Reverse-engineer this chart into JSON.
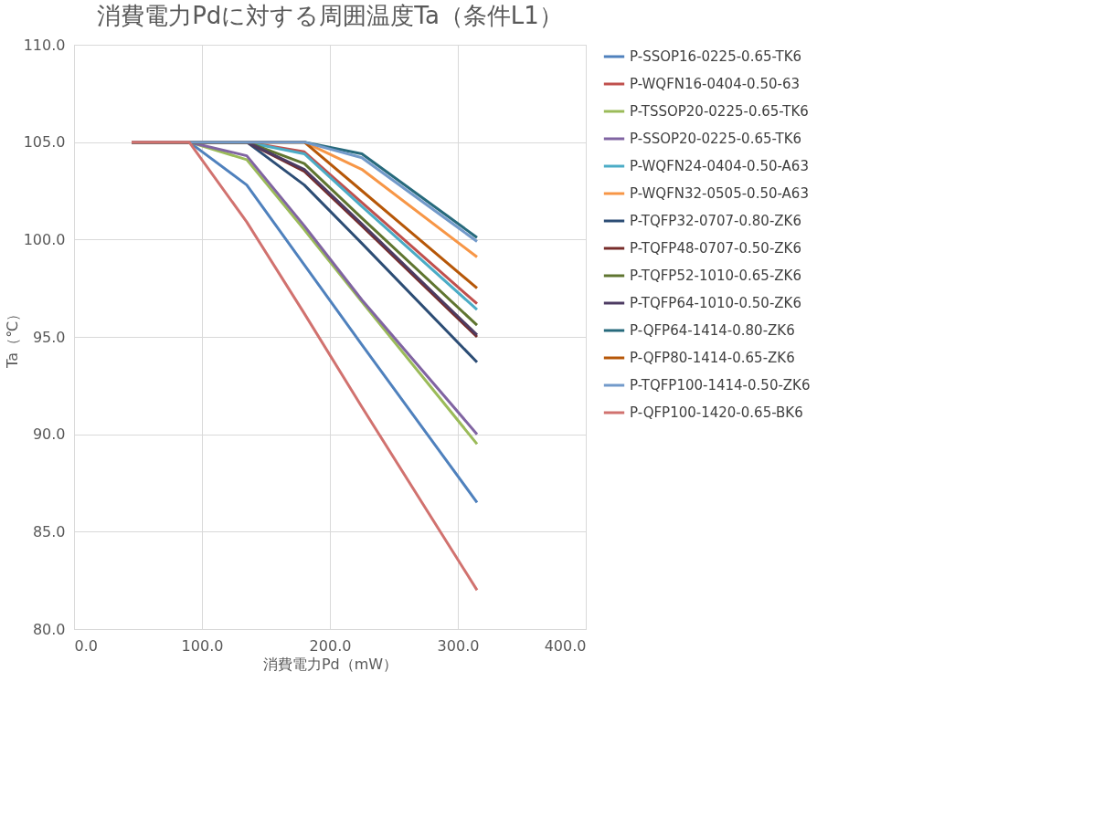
{
  "chart_data": {
    "type": "line",
    "title": "消費電力Pdに対する周囲温度Ta（条件L1）",
    "xlabel": "消費電力Pd（mW）",
    "ylabel": "Ta（℃）",
    "x": [
      45,
      90,
      135,
      180,
      225,
      315
    ],
    "series": [
      {
        "name": "P-SSOP16-0225-0.65-TK6",
        "color": "#4f81bd",
        "values": [
          105,
          105,
          102.8,
          98.7,
          94.6,
          86.5
        ]
      },
      {
        "name": "P-WQFN16-0404-0.50-63",
        "color": "#c0504d",
        "values": [
          105,
          105,
          105,
          104.5,
          101.9,
          96.7
        ]
      },
      {
        "name": "P-TSSOP20-0225-0.65-TK6",
        "color": "#9bbb59",
        "values": [
          105,
          105,
          104.1,
          100.5,
          96.8,
          89.5
        ]
      },
      {
        "name": "P-SSOP20-0225-0.65-TK6",
        "color": "#8064a2",
        "values": [
          105,
          105,
          104.3,
          100.7,
          96.9,
          90.0
        ]
      },
      {
        "name": "P-WQFN24-0404-0.50-A63",
        "color": "#4bacc6",
        "values": [
          105,
          105,
          105,
          104.4,
          101.7,
          96.4
        ]
      },
      {
        "name": "P-WQFN32-0505-0.50-A63",
        "color": "#f79646",
        "values": [
          105,
          105,
          105,
          105,
          103.6,
          99.1
        ]
      },
      {
        "name": "P-TQFP32-0707-0.80-ZK6",
        "color": "#2c4d75",
        "values": [
          105,
          105,
          105,
          102.8,
          99.8,
          93.7
        ]
      },
      {
        "name": "P-TQFP48-0707-0.50-ZK6",
        "color": "#772c2a",
        "values": [
          105,
          105,
          105,
          103.5,
          100.7,
          95.0
        ]
      },
      {
        "name": "P-TQFP52-1010-0.65-ZK6",
        "color": "#5f7530",
        "values": [
          105,
          105,
          105,
          103.9,
          101.1,
          95.6
        ]
      },
      {
        "name": "P-TQFP64-1010-0.50-ZK6",
        "color": "#4d3b62",
        "values": [
          105,
          105,
          105,
          103.6,
          100.8,
          95.1
        ]
      },
      {
        "name": "P-QFP64-1414-0.80-ZK6",
        "color": "#276a7c",
        "values": [
          105,
          105,
          105,
          105,
          104.4,
          100.1
        ]
      },
      {
        "name": "P-QFP80-1414-0.65-ZK6",
        "color": "#b65708",
        "values": [
          105,
          105,
          105,
          105,
          102.5,
          97.5
        ]
      },
      {
        "name": "P-TQFP100-1414-0.50-ZK6",
        "color": "#729aca",
        "values": [
          105,
          105,
          105,
          105,
          104.2,
          99.9
        ]
      },
      {
        "name": "P-QFP100-1420-0.65-BK6",
        "color": "#d1726f",
        "values": [
          105,
          105,
          100.9,
          96.2,
          91.4,
          82.0
        ]
      }
    ],
    "xlim": [
      0,
      400
    ],
    "xticks": [
      {
        "value": 0,
        "label": "0.0"
      },
      {
        "value": 100,
        "label": "100.0"
      },
      {
        "value": 200,
        "label": "200.0"
      },
      {
        "value": 300,
        "label": "300.0"
      },
      {
        "value": 400,
        "label": "400.0"
      }
    ],
    "ylim": [
      80,
      110
    ],
    "yticks": [
      {
        "value": 80,
        "label": "80.0"
      },
      {
        "value": 85,
        "label": "85.0"
      },
      {
        "value": 90,
        "label": "90.0"
      },
      {
        "value": 95,
        "label": "95.0"
      },
      {
        "value": 100,
        "label": "100.0"
      },
      {
        "value": 105,
        "label": "105.0"
      },
      {
        "value": 110,
        "label": "110.0"
      }
    ],
    "grid": true,
    "legend": "right",
    "marker": "none",
    "line_style": "solid"
  }
}
